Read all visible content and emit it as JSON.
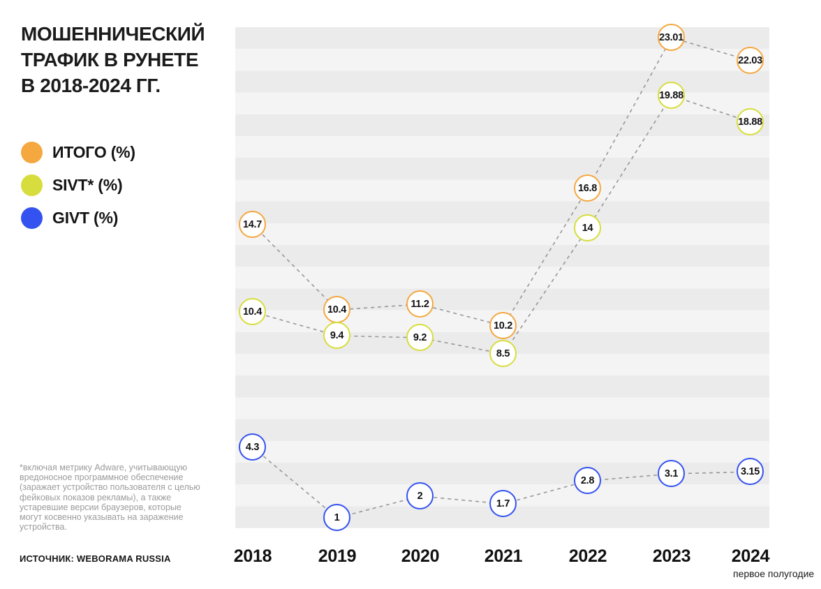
{
  "header": {
    "title_lines": [
      "МОШЕННИЧЕСКИЙ",
      "ТРАФИК В РУНЕТЕ",
      "В 2018-2024 ГГ."
    ]
  },
  "legend": {
    "items": [
      {
        "label": "ИТОГО (%)",
        "color": "#F5A740"
      },
      {
        "label": "SIVT* (%)",
        "color": "#D7DD3C"
      },
      {
        "label": "GIVT (%)",
        "color": "#3452F0"
      }
    ]
  },
  "footnote": "*включая метрику Adware, учитывающую\nвредоносное программное обеспечение\n(заражает устройство пользователя с целью\nфейковых показов рекламы), а также\nустаревшие версии браузеров,  которые\nмогут косвенно указывать на заражение\nустройства.",
  "source": "ИСТОЧНИК: WEBORAMA RUSSIA",
  "x_axis": {
    "labels": [
      "2018",
      "2019",
      "2020",
      "2021",
      "2022",
      "2023",
      "2024"
    ],
    "note_under_last": "первое полугодие"
  },
  "chart_data": {
    "type": "line",
    "title": "МОШЕННИЧЕСКИЙ ТРАФИК В РУНЕТЕ В 2018-2024 ГГ.",
    "categories": [
      "2018",
      "2019",
      "2020",
      "2021",
      "2022",
      "2023",
      "2024"
    ],
    "series": [
      {
        "name": "ИТОГО (%)",
        "color": "#F5A740",
        "values": [
          14.7,
          10.4,
          11.2,
          10.2,
          16.8,
          23.01,
          22.03
        ]
      },
      {
        "name": "SIVT* (%)",
        "color": "#D7DD3C",
        "values": [
          10.4,
          9.4,
          9.2,
          8.5,
          14,
          19.88,
          18.88
        ]
      },
      {
        "name": "GIVT (%)",
        "color": "#3452F0",
        "values": [
          4.3,
          1,
          2,
          1.7,
          2.8,
          3.1,
          3.15
        ]
      }
    ],
    "x_note": "первое полугодие",
    "ylim": [
      0,
      24
    ],
    "grid": false,
    "legend_position": "left",
    "style": {
      "marker": "circle-with-value",
      "line_style": "dashed-gray",
      "background": "horizontal-stripes",
      "stripe_colors": [
        "#EBEBEB",
        "#F4F4F4"
      ],
      "line_color": "#979797"
    }
  }
}
